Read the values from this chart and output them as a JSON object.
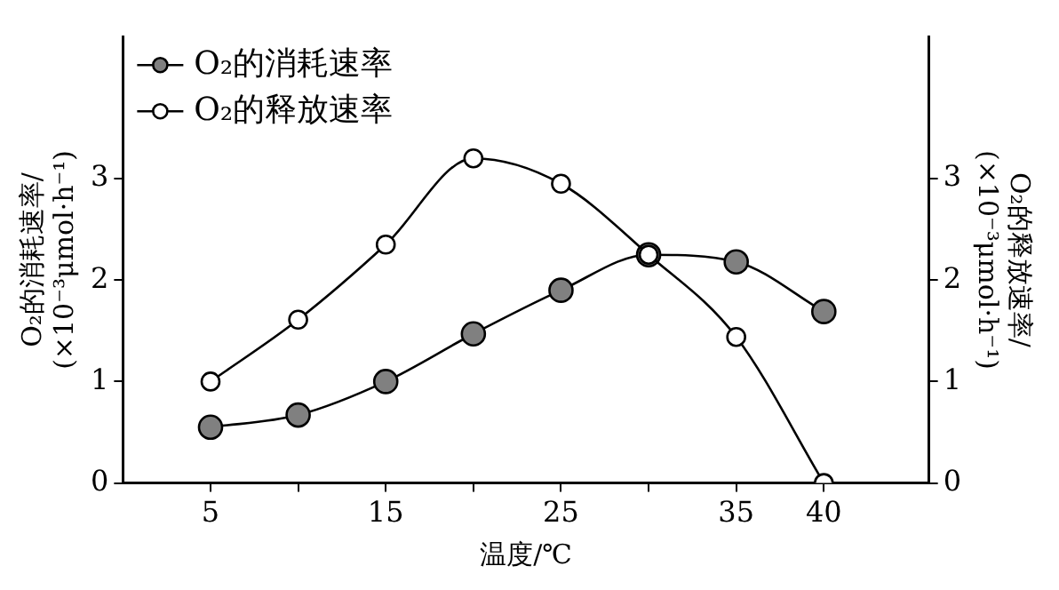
{
  "chart_data": {
    "type": "line",
    "xlabel": "温度/℃",
    "ylabel": "O₂的消耗速率/(×10⁻³μmol·h⁻¹)",
    "y2label": "O₂的释放速率/(×10⁻³μmol·h⁻¹)",
    "x": [
      5,
      10,
      15,
      20,
      25,
      30,
      35,
      40
    ],
    "series": [
      {
        "name": "O₂的消耗速率",
        "color": "#808080",
        "values": [
          0.55,
          0.67,
          1.0,
          1.47,
          1.9,
          2.25,
          2.18,
          1.69
        ]
      },
      {
        "name": "O₂的释放速率",
        "color": "#ffffff",
        "axis": "y2",
        "values": [
          1.0,
          1.61,
          2.35,
          3.2,
          2.95,
          2.25,
          1.44,
          0
        ]
      }
    ],
    "xlim": [
      0,
      46
    ],
    "xticks": [
      5,
      {
        "value": 10,
        "label": null
      },
      15,
      {
        "value": 20,
        "label": null
      },
      25,
      {
        "value": 30,
        "label": null
      },
      35,
      40
    ],
    "ylim": [
      0,
      4.4
    ],
    "yticks": [
      0,
      1,
      2,
      3
    ],
    "y2lim": [
      0,
      4.4
    ],
    "y2ticks": [
      0,
      1,
      2,
      3
    ],
    "grid": false,
    "legend": "top left",
    "marker": "circle",
    "line_style": "solid"
  }
}
